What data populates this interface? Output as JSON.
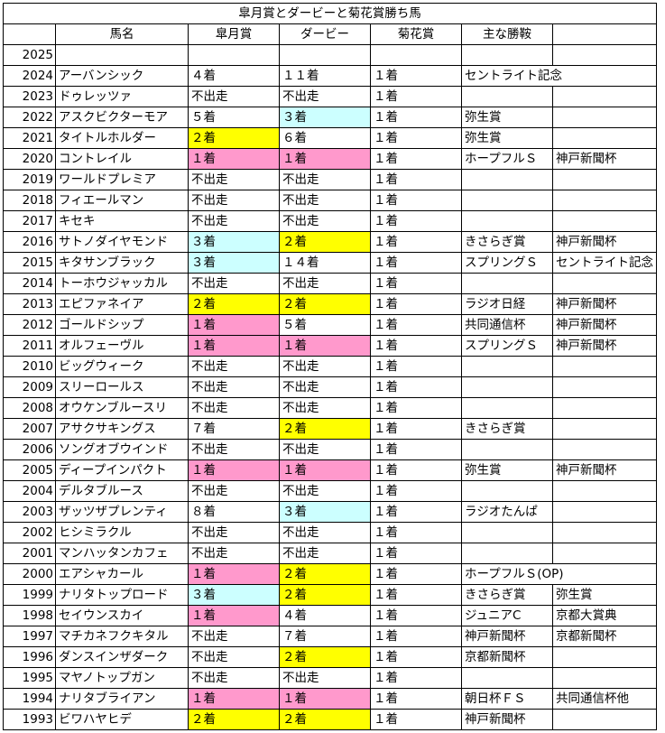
{
  "title": "皐月賞とダービーと菊花賞勝ち馬",
  "headers": [
    "",
    "馬名",
    "皐月賞",
    "ダービー",
    "菊花賞",
    "主な勝鞍",
    ""
  ],
  "colors": {
    "pink": "#ff99cc",
    "yellow": "#ffff00",
    "cyan": "#ccffff"
  },
  "rows": [
    {
      "year": "2025",
      "name": "",
      "satsuki": "",
      "derby": "",
      "kikka": "",
      "win1": "",
      "win2": ""
    },
    {
      "year": "2024",
      "name": "アーバンシック",
      "satsuki": "４着",
      "derby": "１１着",
      "kikka": "１着",
      "win1": "セントライト記念",
      "win2": ""
    },
    {
      "year": "2023",
      "name": "ドゥレッツァ",
      "satsuki": "不出走",
      "derby": "不出走",
      "kikka": "１着",
      "win1": "",
      "win2": ""
    },
    {
      "year": "2022",
      "name": "アスクビクターモア",
      "satsuki": "５着",
      "derby": "３着",
      "derby_color": "cyan",
      "kikka": "１着",
      "win1": "弥生賞",
      "win2": ""
    },
    {
      "year": "2021",
      "name": "タイトルホルダー",
      "satsuki": "２着",
      "satsuki_color": "yellow",
      "derby": "６着",
      "kikka": "１着",
      "win1": "弥生賞",
      "win2": ""
    },
    {
      "year": "2020",
      "name": "コントレイル",
      "satsuki": "１着",
      "satsuki_color": "pink",
      "derby": "１着",
      "derby_color": "pink",
      "kikka": "１着",
      "win1": "ホープフルＳ",
      "win2": "神戸新聞杯"
    },
    {
      "year": "2019",
      "name": "ワールドプレミア",
      "satsuki": "不出走",
      "derby": "不出走",
      "kikka": "１着",
      "win1": "",
      "win2": ""
    },
    {
      "year": "2018",
      "name": "フィエールマン",
      "satsuki": "不出走",
      "derby": "不出走",
      "kikka": "１着",
      "win1": "",
      "win2": ""
    },
    {
      "year": "2017",
      "name": "キセキ",
      "satsuki": "不出走",
      "derby": "不出走",
      "kikka": "１着",
      "win1": "",
      "win2": ""
    },
    {
      "year": "2016",
      "name": "サトノダイヤモンド",
      "satsuki": "３着",
      "satsuki_color": "cyan",
      "derby": "２着",
      "derby_color": "yellow",
      "kikka": "１着",
      "win1": "きさらぎ賞",
      "win2": "神戸新聞杯"
    },
    {
      "year": "2015",
      "name": "キタサンブラック",
      "satsuki": "３着",
      "satsuki_color": "cyan",
      "derby": "１４着",
      "kikka": "１着",
      "win1": "スプリングＳ",
      "win2": "セントライト記念"
    },
    {
      "year": "2014",
      "name": "トーホウジャッカル",
      "satsuki": "不出走",
      "derby": "不出走",
      "kikka": "１着",
      "win1": "",
      "win2": ""
    },
    {
      "year": "2013",
      "name": "エピファネイア",
      "satsuki": "２着",
      "satsuki_color": "yellow",
      "derby": "２着",
      "derby_color": "yellow",
      "kikka": "１着",
      "win1": "ラジオ日経",
      "win2": "神戸新聞杯"
    },
    {
      "year": "2012",
      "name": "ゴールドシップ",
      "satsuki": "１着",
      "satsuki_color": "pink",
      "derby": "５着",
      "kikka": "１着",
      "win1": "共同通信杯",
      "win2": "神戸新聞杯"
    },
    {
      "year": "2011",
      "name": "オルフェーヴル",
      "satsuki": "１着",
      "satsuki_color": "pink",
      "derby": "１着",
      "derby_color": "pink",
      "kikka": "１着",
      "win1": "スプリングＳ",
      "win2": "神戸新聞杯"
    },
    {
      "year": "2010",
      "name": "ビッグウィーク",
      "satsuki": "不出走",
      "derby": "不出走",
      "kikka": "１着",
      "win1": "",
      "win2": ""
    },
    {
      "year": "2009",
      "name": "スリーロールス",
      "satsuki": "不出走",
      "derby": "不出走",
      "kikka": "１着",
      "win1": "",
      "win2": ""
    },
    {
      "year": "2008",
      "name": "オウケンブルースリ",
      "satsuki": "不出走",
      "derby": "不出走",
      "kikka": "１着",
      "win1": "",
      "win2": ""
    },
    {
      "year": "2007",
      "name": "アサクサキングス",
      "satsuki": "７着",
      "derby": "２着",
      "derby_color": "yellow",
      "kikka": "１着",
      "win1": "きさらぎ賞",
      "win2": ""
    },
    {
      "year": "2006",
      "name": "ソングオブウインド",
      "satsuki": "不出走",
      "derby": "不出走",
      "kikka": "１着",
      "win1": "",
      "win2": ""
    },
    {
      "year": "2005",
      "name": "ディープインパクト",
      "satsuki": "１着",
      "satsuki_color": "pink",
      "derby": "１着",
      "derby_color": "pink",
      "kikka": "１着",
      "win1": "弥生賞",
      "win2": "神戸新聞杯"
    },
    {
      "year": "2004",
      "name": "デルタブルース",
      "satsuki": "不出走",
      "derby": "不出走",
      "kikka": "１着",
      "win1": "",
      "win2": ""
    },
    {
      "year": "2003",
      "name": "ザッツザプレンティ",
      "satsuki": "８着",
      "derby": "３着",
      "derby_color": "cyan",
      "kikka": "１着",
      "win1": "ラジオたんぱ",
      "win2": ""
    },
    {
      "year": "2002",
      "name": "ヒシミラクル",
      "satsuki": "不出走",
      "derby": "不出走",
      "kikka": "１着",
      "win1": "",
      "win2": ""
    },
    {
      "year": "2001",
      "name": "マンハッタンカフェ",
      "satsuki": "不出走",
      "derby": "不出走",
      "kikka": "１着",
      "win1": "",
      "win2": ""
    },
    {
      "year": "2000",
      "name": "エアシャカール",
      "satsuki": "１着",
      "satsuki_color": "pink",
      "derby": "２着",
      "derby_color": "yellow",
      "kikka": "１着",
      "win1": "ホープフルＳ(OP)",
      "win2": ""
    },
    {
      "year": "1999",
      "name": "ナリタトップロード",
      "satsuki": "３着",
      "satsuki_color": "cyan",
      "derby": "２着",
      "derby_color": "yellow",
      "kikka": "１着",
      "win1": "きさらぎ賞",
      "win2": "弥生賞"
    },
    {
      "year": "1998",
      "name": "セイウンスカイ",
      "satsuki": "１着",
      "satsuki_color": "pink",
      "derby": "４着",
      "kikka": "１着",
      "win1": "ジュニアC",
      "win2": "京都大賞典"
    },
    {
      "year": "1997",
      "name": "マチカネフクキタル",
      "satsuki": "不出走",
      "derby": "７着",
      "kikka": "１着",
      "win1": "神戸新聞杯",
      "win2": "京都新聞杯"
    },
    {
      "year": "1996",
      "name": "ダンスインザダーク",
      "satsuki": "不出走",
      "derby": "２着",
      "derby_color": "yellow",
      "kikka": "１着",
      "win1": "京都新聞杯",
      "win2": ""
    },
    {
      "year": "1995",
      "name": "マヤノトップガン",
      "satsuki": "不出走",
      "derby": "不出走",
      "kikka": "１着",
      "win1": "",
      "win2": ""
    },
    {
      "year": "1994",
      "name": "ナリタブライアン",
      "satsuki": "１着",
      "satsuki_color": "pink",
      "derby": "１着",
      "derby_color": "pink",
      "kikka": "１着",
      "win1": "朝日杯ＦＳ",
      "win2": "共同通信杯他"
    },
    {
      "year": "1993",
      "name": "ビワハヤヒデ",
      "satsuki": "２着",
      "satsuki_color": "yellow",
      "derby": "２着",
      "derby_color": "yellow",
      "kikka": "１着",
      "win1": "神戸新聞杯",
      "win2": ""
    }
  ]
}
